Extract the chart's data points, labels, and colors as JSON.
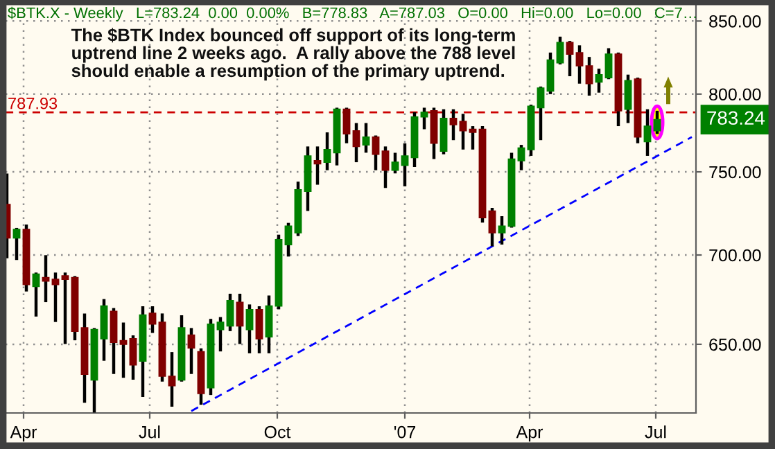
{
  "chart_data": {
    "type": "candlestick",
    "title": "$BTK.X - Weekly   L=783.24  0.00  0.00%   B=778.83   A=787.03   O=0.00   Hi=0.00   Lo=0.00   C=7…",
    "x": [
      "2006-03-20",
      "2006-03-27",
      "2006-04-03",
      "2006-04-10",
      "2006-04-17",
      "2006-04-24",
      "2006-05-01",
      "2006-05-08",
      "2006-05-15",
      "2006-05-22",
      "2006-05-29",
      "2006-06-05",
      "2006-06-12",
      "2006-06-19",
      "2006-06-26",
      "2006-07-03",
      "2006-07-10",
      "2006-07-17",
      "2006-07-24",
      "2006-07-31",
      "2006-08-07",
      "2006-08-14",
      "2006-08-21",
      "2006-08-28",
      "2006-09-04",
      "2006-09-11",
      "2006-09-18",
      "2006-09-25",
      "2006-10-02",
      "2006-10-09",
      "2006-10-16",
      "2006-10-23",
      "2006-10-30",
      "2006-11-06",
      "2006-11-13",
      "2006-11-20",
      "2006-11-27",
      "2006-12-04",
      "2006-12-11",
      "2006-12-18",
      "2006-12-25",
      "2007-01-01",
      "2007-01-08",
      "2007-01-15",
      "2007-01-22",
      "2007-01-29",
      "2007-02-05",
      "2007-02-12",
      "2007-02-19",
      "2007-02-26",
      "2007-03-05",
      "2007-03-12",
      "2007-03-19",
      "2007-03-26",
      "2007-04-02",
      "2007-04-09",
      "2007-04-16",
      "2007-04-23",
      "2007-04-30",
      "2007-05-07",
      "2007-05-14",
      "2007-05-21",
      "2007-05-28",
      "2007-06-04",
      "2007-06-11",
      "2007-06-18",
      "2007-06-25",
      "2007-07-02"
    ],
    "ohlc": [
      [
        730,
        748,
        699,
        710
      ],
      [
        710,
        715,
        698,
        715
      ],
      [
        715,
        717,
        680,
        683
      ],
      [
        682,
        689,
        666,
        689
      ],
      [
        687,
        699,
        674,
        685
      ],
      [
        686,
        689,
        663,
        683
      ],
      [
        688,
        689,
        651,
        686
      ],
      [
        687,
        687,
        653,
        657
      ],
      [
        659,
        666,
        620,
        634
      ],
      [
        631,
        658,
        615,
        658
      ],
      [
        653,
        674,
        642,
        671
      ],
      [
        668,
        669,
        635,
        651
      ],
      [
        652,
        661,
        633,
        650
      ],
      [
        653,
        654,
        632,
        639
      ],
      [
        641,
        670,
        623,
        666
      ],
      [
        667,
        670,
        657,
        661
      ],
      [
        662,
        666,
        631,
        633
      ],
      [
        633,
        645,
        618,
        628
      ],
      [
        631,
        665,
        631,
        659
      ],
      [
        655,
        658,
        635,
        648
      ],
      [
        646,
        647,
        619,
        624
      ],
      [
        627,
        663,
        624,
        661
      ],
      [
        658,
        664,
        647,
        662
      ],
      [
        660,
        677,
        658,
        674
      ],
      [
        673,
        677,
        651,
        660
      ],
      [
        658,
        671,
        646,
        669
      ],
      [
        669,
        670,
        646,
        653
      ],
      [
        654,
        676,
        646,
        671
      ],
      [
        671,
        711,
        670,
        709
      ],
      [
        706,
        718,
        700,
        717
      ],
      [
        713,
        743,
        712,
        739
      ],
      [
        738,
        765,
        727,
        760
      ],
      [
        757,
        765,
        743,
        755
      ],
      [
        756,
        774,
        752,
        764
      ],
      [
        762,
        790,
        755,
        790
      ],
      [
        790,
        790,
        769,
        774
      ],
      [
        776,
        780,
        757,
        766
      ],
      [
        767,
        780,
        763,
        772
      ],
      [
        772,
        772,
        752,
        761
      ],
      [
        763,
        765,
        741,
        751
      ],
      [
        751,
        761,
        750,
        756
      ],
      [
        754,
        767,
        742,
        760
      ],
      [
        759,
        787,
        754,
        785
      ],
      [
        785,
        790,
        778,
        788
      ],
      [
        789,
        790,
        759,
        768
      ],
      [
        763,
        789,
        762,
        784
      ],
      [
        784,
        789,
        771,
        780
      ],
      [
        782,
        786,
        765,
        776
      ],
      [
        777,
        778,
        765,
        775
      ],
      [
        777,
        778,
        720,
        722
      ],
      [
        726,
        727,
        706,
        713
      ],
      [
        713,
        722,
        707,
        717
      ],
      [
        717,
        761,
        717,
        758
      ],
      [
        757,
        766,
        752,
        765
      ],
      [
        764,
        792,
        761,
        792
      ],
      [
        791,
        804,
        771,
        804
      ],
      [
        802,
        827,
        801,
        823
      ],
      [
        821,
        838,
        821,
        835
      ],
      [
        835,
        835,
        813,
        827
      ],
      [
        828,
        832,
        808,
        819
      ],
      [
        819,
        824,
        800,
        807
      ],
      [
        808,
        816,
        802,
        813
      ],
      [
        811,
        830,
        811,
        827
      ],
      [
        827,
        827,
        780,
        789
      ],
      [
        790,
        812,
        782,
        809
      ],
      [
        810,
        810,
        769,
        772
      ],
      [
        769,
        789,
        761,
        779
      ],
      [
        776,
        788,
        775,
        783.24
      ]
    ],
    "colors": [
      "#800000",
      "#008000",
      "#800000",
      "#008000",
      "#800000",
      "#800000",
      "#800000",
      "#800000",
      "#800000",
      "#008000",
      "#008000",
      "#800000",
      "#800000",
      "#800000",
      "#008000",
      "#800000",
      "#800000",
      "#800000",
      "#008000",
      "#800000",
      "#800000",
      "#008000",
      "#008000",
      "#008000",
      "#800000",
      "#008000",
      "#800000",
      "#008000",
      "#008000",
      "#008000",
      "#008000",
      "#008000",
      "#800000",
      "#008000",
      "#008000",
      "#800000",
      "#800000",
      "#008000",
      "#800000",
      "#800000",
      "#008000",
      "#008000",
      "#008000",
      "#008000",
      "#800000",
      "#008000",
      "#800000",
      "#800000",
      "#800000",
      "#800000",
      "#800000",
      "#008000",
      "#008000",
      "#008000",
      "#008000",
      "#008000",
      "#008000",
      "#008000",
      "#800000",
      "#800000",
      "#800000",
      "#008000",
      "#008000",
      "#800000",
      "#008000",
      "#800000",
      "#008000",
      "#008000"
    ],
    "series": [
      {
        "type": "line",
        "x": [
          "2006-07-31",
          "2007-07-27"
        ],
        "values": [
          615,
          772
        ],
        "color": "#0000ff",
        "line_style": "dashed"
      }
    ],
    "ref_lines": [
      {
        "axis": "y",
        "value": 787.93,
        "label": "787.93",
        "color": "#cc0000",
        "line_style": "dashed"
      }
    ],
    "annotations": [
      "The $BTK Index bounced off support of its long-term\nuptrend line 2 weeks ago.  A rally above the 788 level\nshould enable a resumption of the primary uptrend.",
      {
        "text": "783.24",
        "x": "2007-07-02",
        "y": 783.24
      }
    ],
    "log": true,
    "ylim": [
      614,
      861
    ],
    "yticks": [
      {
        "value": 650,
        "label": "650.00"
      },
      {
        "value": 700,
        "label": "700.00"
      },
      {
        "value": 750,
        "label": "750.00"
      },
      {
        "value": 800,
        "label": "800.00"
      },
      {
        "value": 850,
        "label": "850.00"
      }
    ],
    "xlim": [
      "2006-03-19",
      "2007-07-30"
    ],
    "xticks": [
      {
        "value": "2006-04-01",
        "label": "Apr"
      },
      {
        "value": "2006-07-01",
        "label": "Jul"
      },
      {
        "value": "2006-10-01",
        "label": "Oct"
      },
      {
        "value": "2007-01-01",
        "label": "'07"
      },
      {
        "value": "2007-04-01",
        "label": "Apr"
      },
      {
        "value": "2007-07-01",
        "label": "Jul"
      }
    ],
    "grid": true
  }
}
